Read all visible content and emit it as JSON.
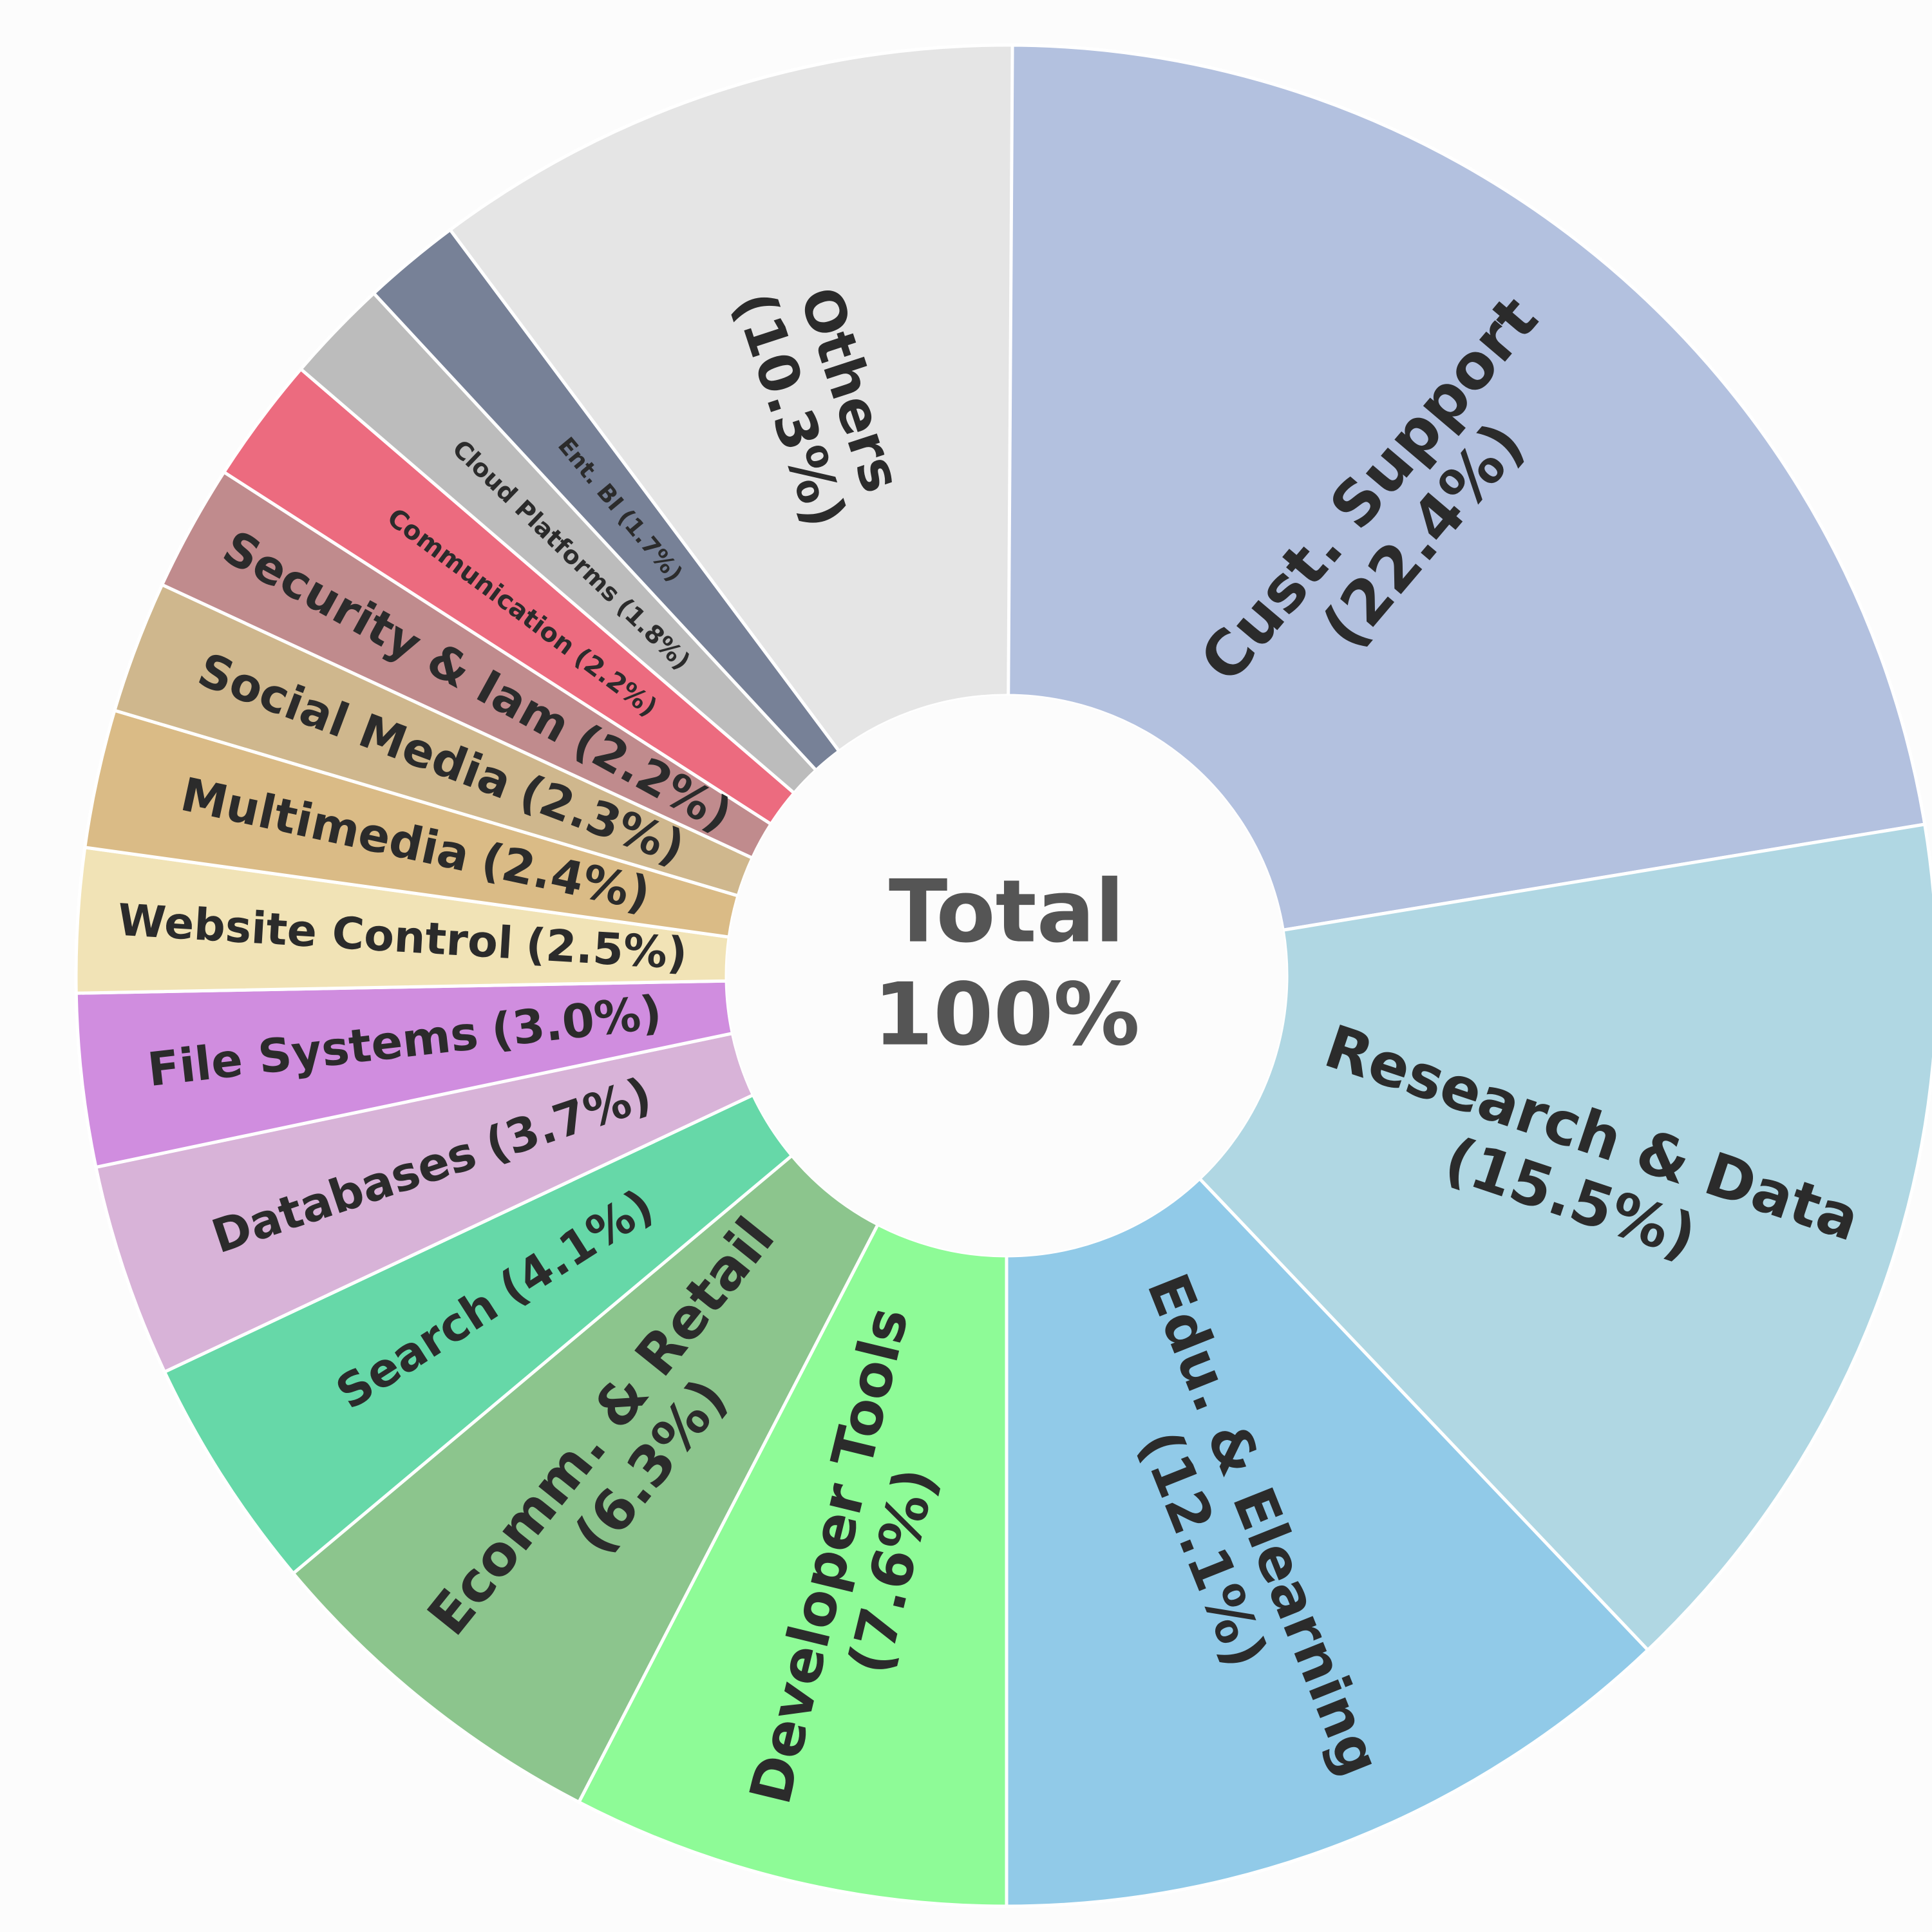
{
  "chart_data": {
    "type": "donut",
    "categories": [
      "Cust. Support",
      "Research & Data",
      "Edu. & Elearning",
      "Developer Tools",
      "Ecomm. & Retail",
      "Search",
      "Databases",
      "File Systems",
      "Website Control",
      "Multimedia",
      "Social Media",
      "Security & Iam",
      "Communication",
      "Cloud Platforms",
      "Ent. BI",
      "Others"
    ],
    "values": [
      22.4,
      15.5,
      12.1,
      7.6,
      6.3,
      4.1,
      3.7,
      3.0,
      2.5,
      2.4,
      2.3,
      2.2,
      2.2,
      1.8,
      1.7,
      10.3
    ],
    "value_labels": [
      "(22.4%)",
      "(15.5%)",
      "(12.1%)",
      "(7.6%)",
      "(6.3%)",
      "(4.1%)",
      "(3.7%)",
      "(3.0%)",
      "(2.5%)",
      "(2.4%)",
      "(2.3%)",
      "(2.2%)",
      "(2.2%)",
      "(1.8%)",
      "(1.7%)",
      "(10.3%)"
    ],
    "colors": [
      "#b3c1df",
      "#b0d7e3",
      "#91cae8",
      "#8efb97",
      "#8cc58d",
      "#66d8a8",
      "#d8b3d8",
      "#d08ddf",
      "#f1e3b6",
      "#dabb86",
      "#cfb78d",
      "#c08b8d",
      "#ec6b7f",
      "#bcbcbc",
      "#778197",
      "#e5e5e5"
    ],
    "center_label": "Total",
    "total": 100,
    "total_label": "100%"
  }
}
